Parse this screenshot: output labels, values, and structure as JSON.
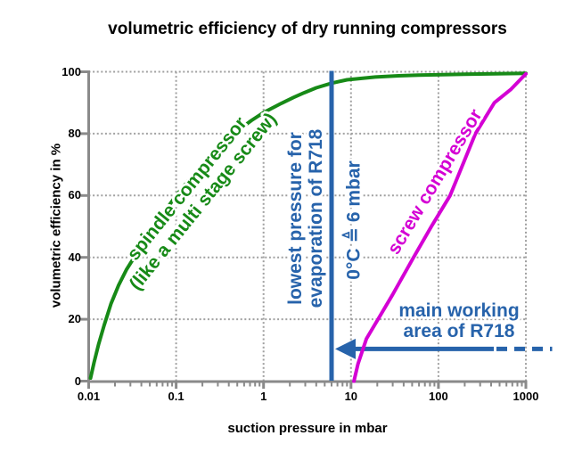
{
  "figure": {
    "title": "volumetric efficiency of dry running compressors",
    "xlabel": "suction pressure in mbar",
    "ylabel": "volumetric efficiency in %"
  },
  "annotations": {
    "spindle_line1": "spindle compressor",
    "spindle_line2": "(like a multi stage screw)",
    "screw": "screw compressor",
    "evap_line1": "lowest pressure for",
    "evap_line2": "evaporation of R718",
    "evap_value": "0°C ≜ 6 mbar",
    "working_line1": "main working",
    "working_line2": "area of R718"
  },
  "colors": {
    "spindle_green": "#178a17",
    "screw_magenta": "#d400d4",
    "annotation_blue": "#2763ab",
    "axis_gray": "#8a8a8a",
    "grid_gray": "#a0a0a0",
    "text_black": "#000000"
  },
  "chart_data": {
    "type": "line",
    "title": "volumetric efficiency of dry running compressors",
    "xlabel": "suction pressure in mbar",
    "ylabel": "volumetric efficiency in %",
    "x_scale": "log",
    "xlim": [
      0.01,
      1000
    ],
    "ylim": [
      0,
      100
    ],
    "x_tick_labels": [
      "0.01",
      "0.1",
      "1",
      "10",
      "100",
      "1000"
    ],
    "x_ticks": [
      0.01,
      0.1,
      1,
      10,
      100,
      1000
    ],
    "y_ticks": [
      0,
      20,
      40,
      60,
      80,
      100
    ],
    "grid": "dotted",
    "legend_position": "none",
    "series": [
      {
        "name": "spindle compressor (like a multi stage screw)",
        "color": "#178a17",
        "points": [
          [
            0.0105,
            1
          ],
          [
            0.0115,
            6
          ],
          [
            0.013,
            12
          ],
          [
            0.015,
            18
          ],
          [
            0.018,
            25
          ],
          [
            0.022,
            31
          ],
          [
            0.027,
            36
          ],
          [
            0.034,
            40.5
          ],
          [
            0.045,
            46
          ],
          [
            0.059,
            51
          ],
          [
            0.075,
            55
          ],
          [
            0.1,
            60
          ],
          [
            0.14,
            65
          ],
          [
            0.21,
            70
          ],
          [
            0.3,
            75
          ],
          [
            0.46,
            80
          ],
          [
            0.6,
            82.5
          ],
          [
            0.73,
            84.3
          ],
          [
            1,
            86.8
          ],
          [
            1.6,
            89.8
          ],
          [
            2.2,
            91.7
          ],
          [
            2.9,
            93.2
          ],
          [
            4,
            94.8
          ],
          [
            6,
            96.3
          ],
          [
            9,
            97.4
          ],
          [
            19,
            98.3
          ],
          [
            35,
            98.7
          ],
          [
            60,
            98.9
          ],
          [
            200,
            99.2
          ],
          [
            1000,
            99.5
          ]
        ]
      },
      {
        "name": "screw compressor",
        "color": "#d400d4",
        "points": [
          [
            10.8,
            0
          ],
          [
            12,
            5.5
          ],
          [
            15,
            13.7
          ],
          [
            21.4,
            21
          ],
          [
            30,
            28
          ],
          [
            52,
            40
          ],
          [
            83,
            50
          ],
          [
            136,
            60
          ],
          [
            190,
            70
          ],
          [
            265,
            80
          ],
          [
            437,
            90
          ],
          [
            668,
            94.2
          ],
          [
            1000,
            99.3
          ]
        ]
      }
    ],
    "reference_line": {
      "x": 6,
      "label": "lowest pressure for evaporation of R718",
      "value_label": "0°C ≜ 6 mbar",
      "color": "#2763ab"
    },
    "working_area_arrow": {
      "y_percent": 10.4,
      "tip_x": 6,
      "solid_end_x": 430,
      "dashed_end_x": 2000,
      "direction": "left",
      "label": "main working area of R718",
      "color": "#2763ab"
    }
  }
}
